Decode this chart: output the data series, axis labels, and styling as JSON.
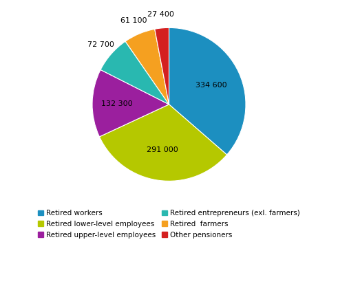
{
  "values": [
    334600,
    291000,
    132300,
    72700,
    61100,
    27400
  ],
  "colors": [
    "#1c8fc0",
    "#b5c800",
    "#9b1f9e",
    "#29b8b0",
    "#f5a020",
    "#d42020"
  ],
  "label_texts": [
    "334 600",
    "291 000",
    "132 300",
    "72 700",
    "61 100",
    "27 400"
  ],
  "legend_order": [
    0,
    1,
    2,
    3,
    4,
    5
  ],
  "legend_labels": [
    "Retired workers",
    "Retired lower-level employees",
    "Retired upper-level employees",
    "Retired entrepreneurs (exl. farmers)",
    "Retired  farmers",
    "Other pensioners"
  ],
  "startangle": 90,
  "counterclock": false,
  "figsize": [
    4.91,
    4.16
  ],
  "dpi": 100
}
